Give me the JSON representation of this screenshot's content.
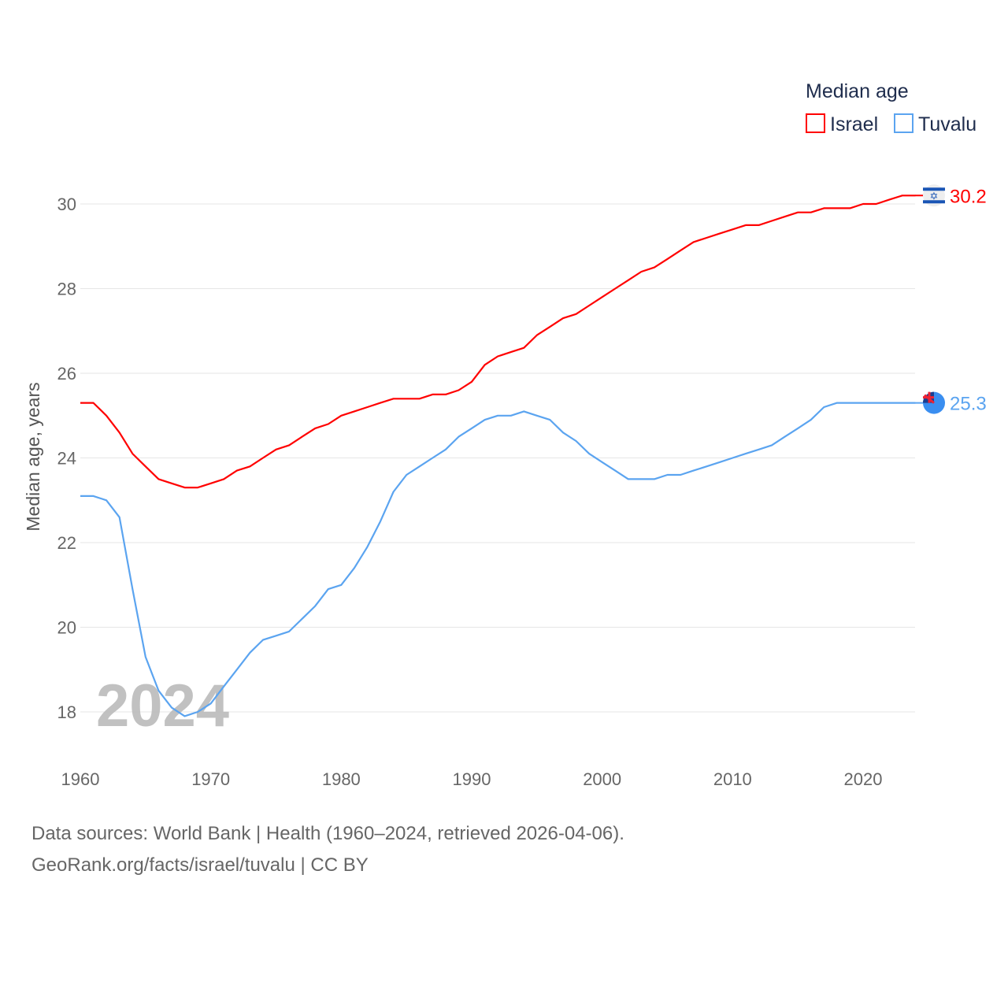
{
  "chart_data": {
    "type": "line",
    "title": "Median age",
    "xlabel": "",
    "ylabel": "Median age, years",
    "xlim": [
      1960,
      2024
    ],
    "ylim": [
      17,
      30.5
    ],
    "x_ticks": [
      "1960",
      "1970",
      "1980",
      "1990",
      "2000",
      "2010",
      "2020"
    ],
    "y_ticks": [
      "18",
      "20",
      "22",
      "24",
      "26",
      "28",
      "30"
    ],
    "grid": true,
    "legend_position": "top-right",
    "year_watermark": "2024",
    "x": [
      1960,
      1961,
      1962,
      1963,
      1964,
      1965,
      1966,
      1967,
      1968,
      1969,
      1970,
      1971,
      1972,
      1973,
      1974,
      1975,
      1976,
      1977,
      1978,
      1979,
      1980,
      1981,
      1982,
      1983,
      1984,
      1985,
      1986,
      1987,
      1988,
      1989,
      1990,
      1991,
      1992,
      1993,
      1994,
      1995,
      1996,
      1997,
      1998,
      1999,
      2000,
      2001,
      2002,
      2003,
      2004,
      2005,
      2006,
      2007,
      2008,
      2009,
      2010,
      2011,
      2012,
      2013,
      2014,
      2015,
      2016,
      2017,
      2018,
      2019,
      2020,
      2021,
      2022,
      2023,
      2024
    ],
    "series": [
      {
        "name": "Israel",
        "color": "#ff0000",
        "end_label": "30.2",
        "values": [
          25.3,
          25.3,
          25.0,
          24.6,
          24.1,
          23.8,
          23.5,
          23.4,
          23.3,
          23.3,
          23.4,
          23.5,
          23.7,
          23.8,
          24.0,
          24.2,
          24.3,
          24.5,
          24.7,
          24.8,
          25.0,
          25.1,
          25.2,
          25.3,
          25.4,
          25.4,
          25.4,
          25.5,
          25.5,
          25.6,
          25.8,
          26.2,
          26.4,
          26.5,
          26.6,
          26.9,
          27.1,
          27.3,
          27.4,
          27.6,
          27.8,
          28.0,
          28.2,
          28.4,
          28.5,
          28.7,
          28.9,
          29.1,
          29.2,
          29.3,
          29.4,
          29.5,
          29.5,
          29.6,
          29.7,
          29.8,
          29.8,
          29.9,
          29.9,
          29.9,
          30.0,
          30.0,
          30.1,
          30.2,
          30.2
        ]
      },
      {
        "name": "Tuvalu",
        "color": "#5ba4f0",
        "end_label": "25.3",
        "values": [
          23.1,
          23.1,
          23.0,
          22.6,
          20.9,
          19.3,
          18.5,
          18.1,
          17.9,
          18.0,
          18.2,
          18.6,
          19.0,
          19.4,
          19.7,
          19.8,
          19.9,
          20.2,
          20.5,
          20.9,
          21.0,
          21.4,
          21.9,
          22.5,
          23.2,
          23.6,
          23.8,
          24.0,
          24.2,
          24.5,
          24.7,
          24.9,
          25.0,
          25.0,
          25.1,
          25.0,
          24.9,
          24.6,
          24.4,
          24.1,
          23.9,
          23.7,
          23.5,
          23.5,
          23.5,
          23.6,
          23.6,
          23.7,
          23.8,
          23.9,
          24.0,
          24.1,
          24.2,
          24.3,
          24.5,
          24.7,
          24.9,
          25.2,
          25.3,
          25.3,
          25.3,
          25.3,
          25.3,
          25.3,
          25.3
        ]
      }
    ]
  },
  "footer": {
    "line1": "Data sources: World Bank | Health (1960–2024, retrieved 2026-04-06).",
    "line2": "GeoRank.org/facts/israel/tuvalu | CC BY"
  }
}
